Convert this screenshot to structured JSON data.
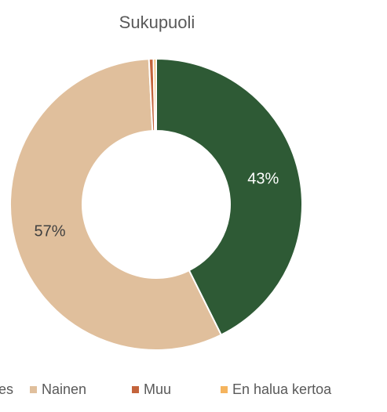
{
  "chart_data": {
    "type": "pie",
    "title": "Sukupuoli",
    "categories": [
      "Mies",
      "Nainen",
      "Muu",
      "En halua kertoa"
    ],
    "values": [
      43,
      57,
      0.5,
      0.3
    ],
    "value_labels": [
      "43%",
      "57%",
      null,
      null
    ],
    "colors": [
      "#2e5a35",
      "#e0bf9c",
      "#c4643c",
      "#f5b45e"
    ],
    "legend": "bottom"
  }
}
